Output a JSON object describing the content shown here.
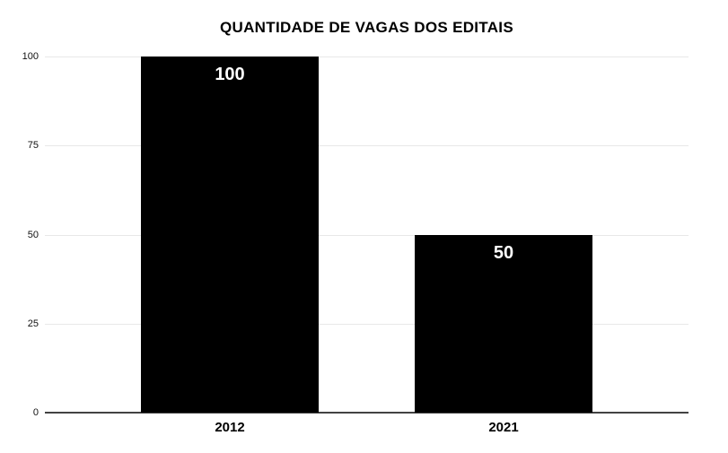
{
  "chart_data": {
    "type": "bar",
    "title": "QUANTIDADE DE VAGAS DOS EDITAIS",
    "categories": [
      "2012",
      "2021"
    ],
    "values": [
      100,
      50
    ],
    "value_labels": [
      "100",
      "50"
    ],
    "value_label_position": "inside-top",
    "xlabel": "",
    "ylabel": "",
    "ylim": [
      0,
      100
    ],
    "yticks": [
      0,
      25,
      50,
      75,
      100
    ],
    "grid": true,
    "legend": "none",
    "colors": {
      "bar": "#000000",
      "value_label_text": "#ffffff",
      "gridline": "#e8e8e8",
      "baseline": "#424242",
      "title_text": "#000000",
      "tick_text": "#111111",
      "category_text": "#000000",
      "background": "#ffffff"
    }
  }
}
